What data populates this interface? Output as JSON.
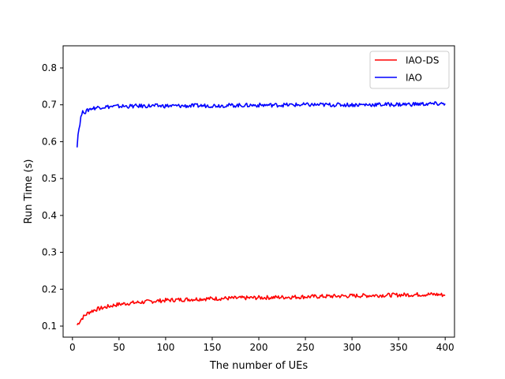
{
  "chart_data": {
    "type": "line",
    "title": "",
    "xlabel": "The number of UEs",
    "ylabel": "Run Time (s)",
    "xlim": [
      -10,
      410
    ],
    "ylim": [
      0.07,
      0.86
    ],
    "xticks": [
      0,
      50,
      100,
      150,
      200,
      250,
      300,
      350,
      400
    ],
    "yticks": [
      0.1,
      0.2,
      0.3,
      0.4,
      0.5,
      0.6,
      0.7,
      0.8
    ],
    "xtick_labels": [
      "0",
      "50",
      "100",
      "150",
      "200",
      "250",
      "300",
      "350",
      "400"
    ],
    "ytick_labels": [
      "0.1",
      "0.2",
      "0.3",
      "0.4",
      "0.5",
      "0.6",
      "0.7",
      "0.8"
    ],
    "grid": false,
    "legend_position": "top-right",
    "series": [
      {
        "name": "IAO-DS",
        "color": "#ff0000",
        "x": [
          5,
          7,
          9,
          11,
          13,
          15,
          17,
          20,
          25,
          30,
          35,
          40,
          45,
          50,
          60,
          70,
          80,
          90,
          100,
          120,
          140,
          160,
          180,
          200,
          220,
          240,
          260,
          280,
          300,
          320,
          340,
          360,
          380,
          390,
          400
        ],
        "y": [
          0.103,
          0.11,
          0.117,
          0.123,
          0.128,
          0.132,
          0.136,
          0.14,
          0.145,
          0.148,
          0.151,
          0.154,
          0.157,
          0.159,
          0.162,
          0.164,
          0.166,
          0.168,
          0.17,
          0.172,
          0.174,
          0.175,
          0.176,
          0.177,
          0.178,
          0.179,
          0.18,
          0.181,
          0.182,
          0.183,
          0.184,
          0.185,
          0.186,
          0.186,
          0.184
        ]
      },
      {
        "name": "IAO",
        "color": "#0000ff",
        "x": [
          5,
          6,
          7,
          8,
          9,
          10,
          12,
          14,
          16,
          18,
          20,
          25,
          30,
          40,
          50,
          60,
          80,
          100,
          120,
          150,
          200,
          250,
          300,
          350,
          400
        ],
        "y": [
          0.59,
          0.62,
          0.635,
          0.65,
          0.665,
          0.675,
          0.683,
          0.68,
          0.684,
          0.688,
          0.69,
          0.692,
          0.694,
          0.695,
          0.696,
          0.696,
          0.697,
          0.697,
          0.697,
          0.698,
          0.699,
          0.7,
          0.7,
          0.701,
          0.703
        ]
      }
    ]
  }
}
